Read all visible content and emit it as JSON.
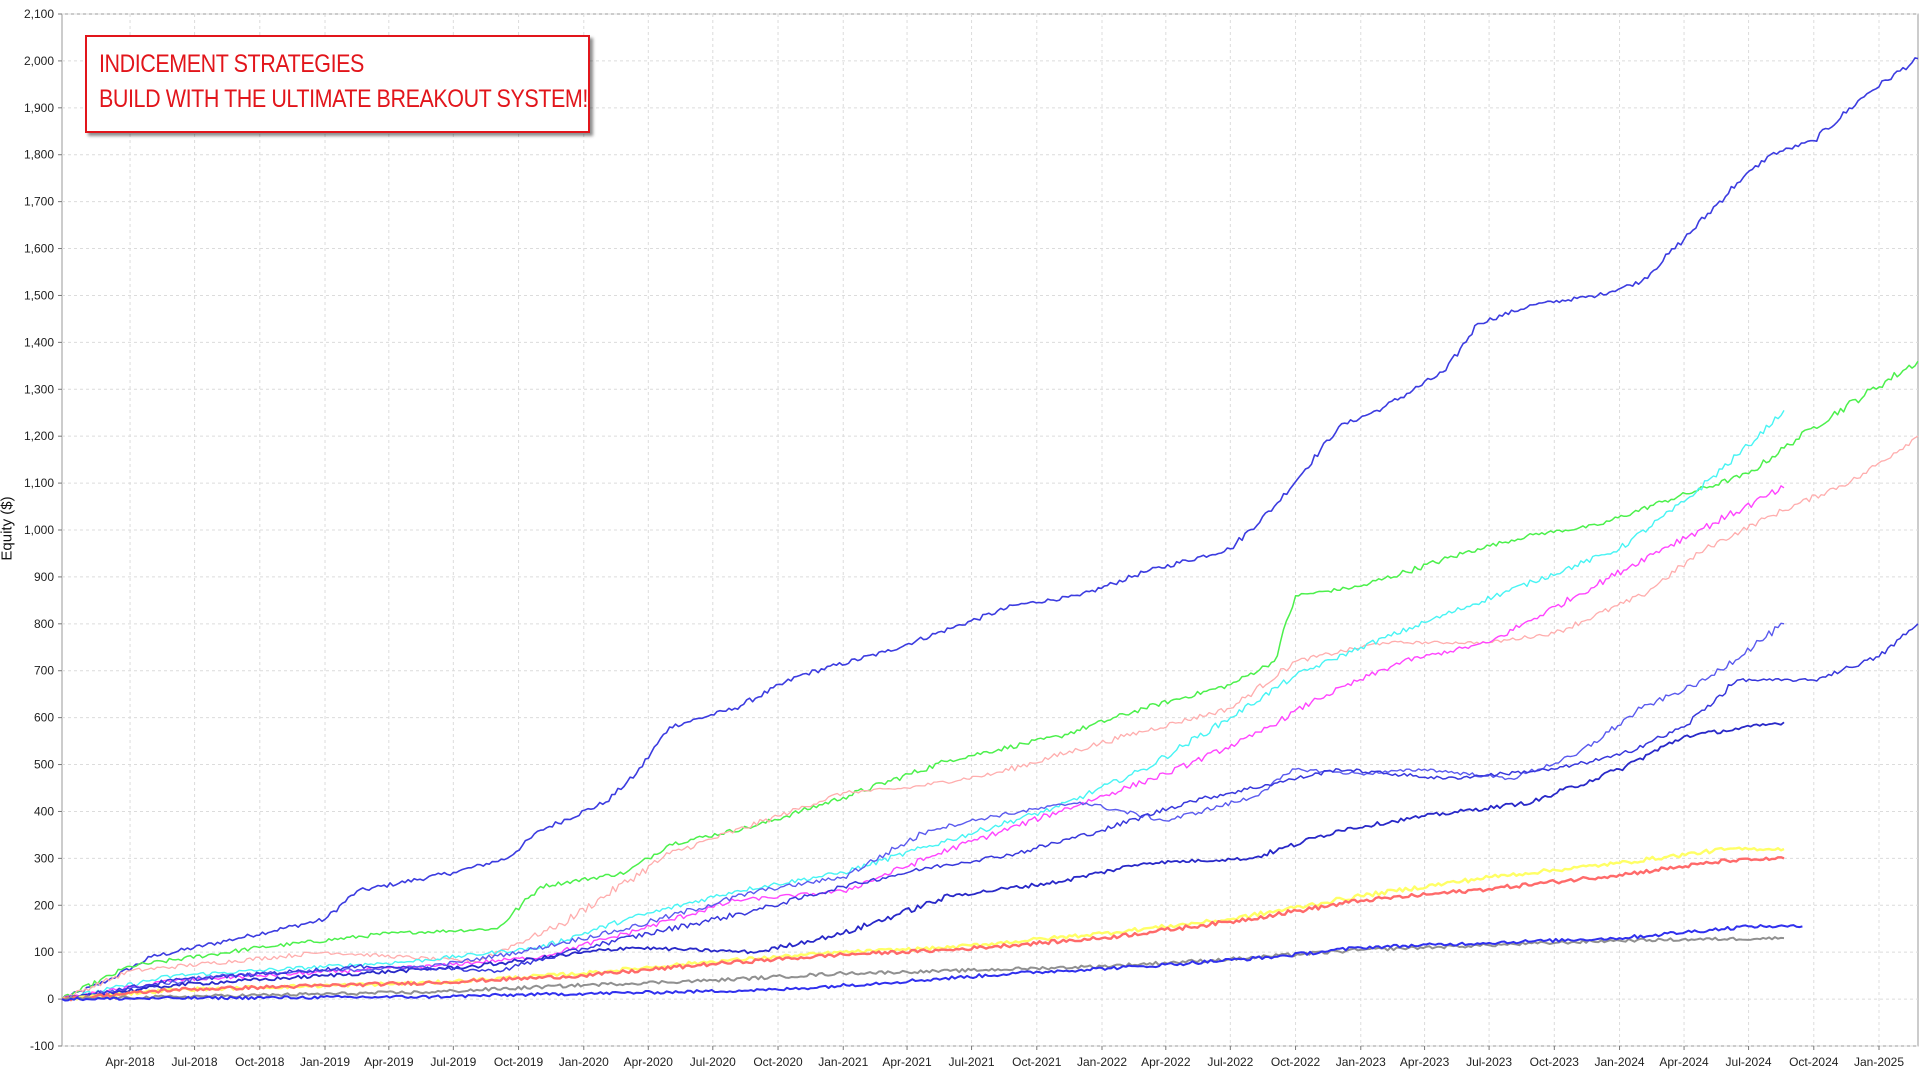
{
  "chart_data": {
    "type": "line",
    "title": "",
    "annotation": [
      "INDICEMENT STRATEGIES",
      "BUILD WITH THE ULTIMATE BREAKOUT SYSTEM!"
    ],
    "xlabel": "",
    "ylabel": "Equity ($)",
    "ylim": [
      -100,
      2100
    ],
    "yticks": [
      "-100",
      "0",
      "100",
      "200",
      "300",
      "400",
      "500",
      "600",
      "700",
      "800",
      "900",
      "1,000",
      "1,100",
      "1,200",
      "1,300",
      "1,400",
      "1,500",
      "1,600",
      "1,700",
      "1,800",
      "1,900",
      "2,000",
      "2,100"
    ],
    "xlim": [
      "2017-12-26",
      "2025-02-25"
    ],
    "xticks": [
      {
        "date": "2018-04-01",
        "label": "Apr-2018"
      },
      {
        "date": "2018-07-01",
        "label": "Jul-2018"
      },
      {
        "date": "2018-10-01",
        "label": "Oct-2018"
      },
      {
        "date": "2019-01-01",
        "label": "Jan-2019"
      },
      {
        "date": "2019-04-01",
        "label": "Apr-2019"
      },
      {
        "date": "2019-07-01",
        "label": "Jul-2019"
      },
      {
        "date": "2019-10-01",
        "label": "Oct-2019"
      },
      {
        "date": "2020-01-01",
        "label": "Jan-2020"
      },
      {
        "date": "2020-04-01",
        "label": "Apr-2020"
      },
      {
        "date": "2020-07-01",
        "label": "Jul-2020"
      },
      {
        "date": "2020-10-01",
        "label": "Oct-2020"
      },
      {
        "date": "2021-01-01",
        "label": "Jan-2021"
      },
      {
        "date": "2021-04-01",
        "label": "Apr-2021"
      },
      {
        "date": "2021-07-01",
        "label": "Jul-2021"
      },
      {
        "date": "2021-10-01",
        "label": "Oct-2021"
      },
      {
        "date": "2022-01-01",
        "label": "Jan-2022"
      },
      {
        "date": "2022-04-01",
        "label": "Apr-2022"
      },
      {
        "date": "2022-07-01",
        "label": "Jul-2022"
      },
      {
        "date": "2022-10-01",
        "label": "Oct-2022"
      },
      {
        "date": "2023-01-01",
        "label": "Jan-2023"
      },
      {
        "date": "2023-04-01",
        "label": "Apr-2023"
      },
      {
        "date": "2023-07-01",
        "label": "Jul-2023"
      },
      {
        "date": "2023-10-01",
        "label": "Oct-2023"
      },
      {
        "date": "2024-01-01",
        "label": "Jan-2024"
      },
      {
        "date": "2024-04-01",
        "label": "Apr-2024"
      },
      {
        "date": "2024-07-01",
        "label": "Jul-2024"
      },
      {
        "date": "2024-10-01",
        "label": "Oct-2024"
      },
      {
        "date": "2025-01-01",
        "label": "Jan-2025"
      }
    ],
    "grid": true,
    "legend": "none",
    "series": [
      {
        "color": "#3c3ce0",
        "width": 1.6,
        "points": [
          [
            "2017-12-26",
            0
          ],
          [
            "2018-03-01",
            40
          ],
          [
            "2018-05-01",
            90
          ],
          [
            "2018-09-01",
            130
          ],
          [
            "2019-01-01",
            170
          ],
          [
            "2019-02-15",
            230
          ],
          [
            "2019-07-01",
            270
          ],
          [
            "2019-09-15",
            300
          ],
          [
            "2019-11-01",
            360
          ],
          [
            "2020-02-01",
            420
          ],
          [
            "2020-03-15",
            480
          ],
          [
            "2020-05-01",
            580
          ],
          [
            "2020-08-01",
            620
          ],
          [
            "2020-11-01",
            690
          ],
          [
            "2021-03-01",
            740
          ],
          [
            "2021-06-01",
            790
          ],
          [
            "2021-09-01",
            840
          ],
          [
            "2021-12-01",
            860
          ],
          [
            "2022-03-01",
            910
          ],
          [
            "2022-07-01",
            960
          ],
          [
            "2022-09-01",
            1050
          ],
          [
            "2022-10-15",
            1130
          ],
          [
            "2022-12-01",
            1220
          ],
          [
            "2023-02-01",
            1260
          ],
          [
            "2023-05-01",
            1340
          ],
          [
            "2023-06-15",
            1440
          ],
          [
            "2023-09-01",
            1480
          ],
          [
            "2023-12-01",
            1500
          ],
          [
            "2024-02-01",
            1530
          ],
          [
            "2024-04-01",
            1620
          ],
          [
            "2024-06-15",
            1740
          ],
          [
            "2024-08-01",
            1800
          ],
          [
            "2024-10-01",
            1830
          ],
          [
            "2024-12-15",
            1930
          ],
          [
            "2025-02-25",
            2005
          ]
        ]
      },
      {
        "color": "#4cf04c",
        "width": 1.5,
        "points": [
          [
            "2017-12-26",
            0
          ],
          [
            "2018-04-01",
            70
          ],
          [
            "2018-10-01",
            110
          ],
          [
            "2019-04-01",
            140
          ],
          [
            "2019-09-01",
            150
          ],
          [
            "2019-11-01",
            240
          ],
          [
            "2020-03-01",
            270
          ],
          [
            "2020-05-01",
            330
          ],
          [
            "2020-09-01",
            370
          ],
          [
            "2021-01-01",
            430
          ],
          [
            "2021-06-01",
            510
          ],
          [
            "2021-11-01",
            560
          ],
          [
            "2022-03-01",
            620
          ],
          [
            "2022-07-01",
            670
          ],
          [
            "2022-09-01",
            720
          ],
          [
            "2022-10-01",
            860
          ],
          [
            "2023-01-01",
            880
          ],
          [
            "2023-06-15",
            960
          ],
          [
            "2023-09-01",
            990
          ],
          [
            "2023-12-01",
            1010
          ],
          [
            "2024-03-01",
            1060
          ],
          [
            "2024-07-01",
            1120
          ],
          [
            "2024-10-01",
            1220
          ],
          [
            "2025-02-25",
            1360
          ]
        ]
      },
      {
        "color": "#ffadad",
        "width": 1.3,
        "points": [
          [
            "2017-12-26",
            0
          ],
          [
            "2018-04-01",
            60
          ],
          [
            "2019-01-01",
            100
          ],
          [
            "2019-08-01",
            80
          ],
          [
            "2019-12-01",
            160
          ],
          [
            "2020-05-01",
            310
          ],
          [
            "2020-10-01",
            390
          ],
          [
            "2021-01-01",
            440
          ],
          [
            "2021-04-01",
            450
          ],
          [
            "2021-08-01",
            480
          ],
          [
            "2022-02-01",
            560
          ],
          [
            "2022-07-01",
            620
          ],
          [
            "2022-10-01",
            720
          ],
          [
            "2023-02-01",
            760
          ],
          [
            "2023-07-01",
            760
          ],
          [
            "2023-10-01",
            780
          ],
          [
            "2024-02-01",
            860
          ],
          [
            "2024-05-01",
            960
          ],
          [
            "2024-08-01",
            1030
          ],
          [
            "2024-12-01",
            1110
          ],
          [
            "2025-02-25",
            1200
          ]
        ]
      },
      {
        "color": "#48f4f4",
        "width": 1.4,
        "points": [
          [
            "2017-12-26",
            0
          ],
          [
            "2018-06-01",
            50
          ],
          [
            "2019-05-01",
            80
          ],
          [
            "2019-11-01",
            110
          ],
          [
            "2020-03-01",
            170
          ],
          [
            "2020-08-01",
            230
          ],
          [
            "2021-01-01",
            270
          ],
          [
            "2021-06-01",
            340
          ],
          [
            "2021-11-01",
            410
          ],
          [
            "2022-03-01",
            490
          ],
          [
            "2022-07-01",
            600
          ],
          [
            "2022-10-01",
            690
          ],
          [
            "2023-01-01",
            750
          ],
          [
            "2023-05-01",
            820
          ],
          [
            "2023-09-01",
            890
          ],
          [
            "2024-01-01",
            960
          ],
          [
            "2024-04-01",
            1060
          ],
          [
            "2024-07-01",
            1180
          ],
          [
            "2024-08-20",
            1255
          ]
        ]
      },
      {
        "color": "#ff44ff",
        "width": 1.4,
        "points": [
          [
            "2017-12-26",
            0
          ],
          [
            "2018-06-01",
            40
          ],
          [
            "2019-06-01",
            70
          ],
          [
            "2019-11-01",
            90
          ],
          [
            "2020-03-01",
            140
          ],
          [
            "2020-08-01",
            210
          ],
          [
            "2021-01-01",
            230
          ],
          [
            "2021-06-01",
            320
          ],
          [
            "2021-11-01",
            400
          ],
          [
            "2022-04-01",
            480
          ],
          [
            "2022-08-01",
            560
          ],
          [
            "2022-11-01",
            640
          ],
          [
            "2023-03-01",
            720
          ],
          [
            "2023-07-01",
            760
          ],
          [
            "2023-11-01",
            860
          ],
          [
            "2024-03-01",
            960
          ],
          [
            "2024-08-20",
            1090
          ]
        ]
      },
      {
        "color": "#5a5aee",
        "width": 1.4,
        "points": [
          [
            "2017-12-26",
            0
          ],
          [
            "2018-08-01",
            50
          ],
          [
            "2019-06-01",
            70
          ],
          [
            "2019-10-01",
            100
          ],
          [
            "2020-03-01",
            150
          ],
          [
            "2020-09-01",
            230
          ],
          [
            "2021-01-01",
            260
          ],
          [
            "2021-05-01",
            360
          ],
          [
            "2021-08-01",
            390
          ],
          [
            "2021-12-01",
            420
          ],
          [
            "2022-04-01",
            380
          ],
          [
            "2022-08-01",
            430
          ],
          [
            "2022-10-01",
            490
          ],
          [
            "2023-01-01",
            480
          ],
          [
            "2023-04-01",
            490
          ],
          [
            "2023-08-01",
            470
          ],
          [
            "2023-11-01",
            520
          ],
          [
            "2024-02-01",
            620
          ],
          [
            "2024-05-01",
            680
          ],
          [
            "2024-08-20",
            800
          ]
        ]
      },
      {
        "color": "#2828c8",
        "width": 1.8,
        "points": [
          [
            "2017-12-26",
            0
          ],
          [
            "2018-06-01",
            30
          ],
          [
            "2019-01-01",
            50
          ],
          [
            "2019-08-01",
            70
          ],
          [
            "2020-03-01",
            110
          ],
          [
            "2020-09-01",
            100
          ],
          [
            "2021-01-01",
            140
          ],
          [
            "2021-06-01",
            220
          ],
          [
            "2021-11-01",
            250
          ],
          [
            "2022-03-01",
            290
          ],
          [
            "2022-08-01",
            300
          ],
          [
            "2022-12-01",
            360
          ],
          [
            "2023-04-01",
            390
          ],
          [
            "2023-09-01",
            420
          ],
          [
            "2024-01-01",
            490
          ],
          [
            "2024-04-01",
            560
          ],
          [
            "2024-08-20",
            590
          ]
        ]
      },
      {
        "color": "#3838dc",
        "width": 1.5,
        "points": [
          [
            "2017-12-26",
            0
          ],
          [
            "2018-06-01",
            40
          ],
          [
            "2019-03-01",
            70
          ],
          [
            "2019-09-01",
            60
          ],
          [
            "2020-02-01",
            120
          ],
          [
            "2020-09-01",
            190
          ],
          [
            "2021-01-01",
            240
          ],
          [
            "2021-05-01",
            280
          ],
          [
            "2021-09-01",
            310
          ],
          [
            "2022-01-01",
            360
          ],
          [
            "2022-05-01",
            420
          ],
          [
            "2022-09-01",
            460
          ],
          [
            "2022-12-01",
            490
          ],
          [
            "2023-05-01",
            470
          ],
          [
            "2023-10-01",
            490
          ],
          [
            "2024-01-01",
            520
          ],
          [
            "2024-04-01",
            580
          ],
          [
            "2024-06-15",
            680
          ],
          [
            "2024-10-01",
            680
          ],
          [
            "2025-01-01",
            730
          ],
          [
            "2025-02-25",
            800
          ]
        ]
      },
      {
        "color": "#ffff66",
        "width": 2.4,
        "points": [
          [
            "2017-12-26",
            0
          ],
          [
            "2018-06-01",
            20
          ],
          [
            "2019-06-01",
            35
          ],
          [
            "2020-01-01",
            55
          ],
          [
            "2020-07-01",
            80
          ],
          [
            "2021-01-01",
            100
          ],
          [
            "2021-06-01",
            110
          ],
          [
            "2022-01-01",
            140
          ],
          [
            "2022-07-01",
            170
          ],
          [
            "2023-01-01",
            220
          ],
          [
            "2023-07-01",
            260
          ],
          [
            "2024-01-01",
            290
          ],
          [
            "2024-06-01",
            320
          ],
          [
            "2024-08-20",
            320
          ]
        ]
      },
      {
        "color": "#ff6a6a",
        "width": 2.4,
        "points": [
          [
            "2017-12-26",
            0
          ],
          [
            "2018-06-01",
            20
          ],
          [
            "2019-06-01",
            35
          ],
          [
            "2020-01-01",
            50
          ],
          [
            "2020-07-01",
            75
          ],
          [
            "2021-01-01",
            95
          ],
          [
            "2021-06-01",
            105
          ],
          [
            "2022-01-01",
            130
          ],
          [
            "2022-07-01",
            165
          ],
          [
            "2023-01-01",
            210
          ],
          [
            "2023-07-01",
            235
          ],
          [
            "2024-01-01",
            265
          ],
          [
            "2024-06-01",
            295
          ],
          [
            "2024-08-20",
            300
          ]
        ]
      },
      {
        "color": "#909090",
        "width": 2.0,
        "points": [
          [
            "2017-12-26",
            0
          ],
          [
            "2018-06-01",
            5
          ],
          [
            "2019-06-01",
            15
          ],
          [
            "2020-01-01",
            30
          ],
          [
            "2020-07-01",
            40
          ],
          [
            "2021-01-01",
            55
          ],
          [
            "2021-06-01",
            60
          ],
          [
            "2022-01-01",
            70
          ],
          [
            "2022-07-01",
            85
          ],
          [
            "2023-01-01",
            105
          ],
          [
            "2023-07-01",
            115
          ],
          [
            "2024-01-01",
            125
          ],
          [
            "2024-08-20",
            130
          ]
        ]
      },
      {
        "color": "#3030ee",
        "width": 2.0,
        "points": [
          [
            "2017-12-26",
            0
          ],
          [
            "2018-06-01",
            2
          ],
          [
            "2019-06-01",
            5
          ],
          [
            "2019-11-01",
            10
          ],
          [
            "2020-05-01",
            15
          ],
          [
            "2020-10-01",
            20
          ],
          [
            "2021-03-01",
            35
          ],
          [
            "2021-09-01",
            55
          ],
          [
            "2022-03-01",
            70
          ],
          [
            "2022-09-01",
            90
          ],
          [
            "2023-01-01",
            110
          ],
          [
            "2023-07-01",
            120
          ],
          [
            "2024-01-01",
            130
          ],
          [
            "2024-07-01",
            155
          ],
          [
            "2024-09-15",
            155
          ]
        ]
      }
    ]
  }
}
